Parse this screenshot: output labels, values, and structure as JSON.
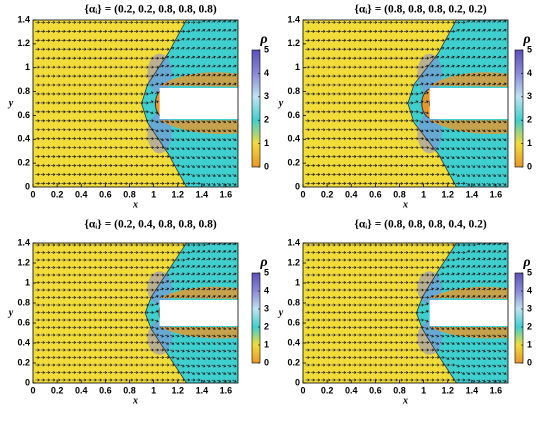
{
  "chart_data": [
    {
      "type": "field",
      "title": "{αᵢ} = (0.2, 0.2, 0.8, 0.8, 0.8)",
      "xlabel": "x",
      "ylabel": "y",
      "xlim": [
        0,
        1.7
      ],
      "ylim": [
        0,
        1.4
      ],
      "xticks": [
        0,
        0.2,
        0.4,
        0.6,
        0.8,
        1,
        1.2,
        1.4,
        1.6
      ],
      "yticks": [
        0,
        0.2,
        0.4,
        0.6,
        0.8,
        1,
        1.2,
        1.4
      ],
      "colorbar": {
        "label": "ρ",
        "lim": [
          0,
          5
        ],
        "ticks": [
          0,
          1,
          2,
          3,
          4,
          5
        ],
        "colors": [
          "#e8962a",
          "#f2dc3a",
          "#3fcfcf",
          "#bfe2f0",
          "#8a8ad8",
          "#5a52b8"
        ]
      }
    },
    {
      "type": "field",
      "title": "{αᵢ} = (0.8, 0.8, 0.8, 0.2, 0.2)",
      "xlabel": "x",
      "ylabel": "y",
      "xlim": [
        0,
        1.7
      ],
      "ylim": [
        0,
        1.4
      ],
      "xticks": [
        0,
        0.2,
        0.4,
        0.6,
        0.8,
        1,
        1.2,
        1.4,
        1.6
      ],
      "yticks": [
        0,
        0.2,
        0.4,
        0.6,
        0.8,
        1,
        1.2,
        1.4
      ],
      "colorbar": {
        "label": "ρ",
        "lim": [
          0,
          5
        ],
        "ticks": [
          0,
          1,
          2,
          3,
          4,
          5
        ],
        "colors": [
          "#e8962a",
          "#f2dc3a",
          "#3fcfcf",
          "#bfe2f0",
          "#8a8ad8",
          "#5a52b8"
        ]
      }
    },
    {
      "type": "field",
      "title": "{αᵢ} = (0.2, 0.4, 0.8, 0.8, 0.8)",
      "xlabel": "x",
      "ylabel": "y",
      "xlim": [
        0,
        1.7
      ],
      "ylim": [
        0,
        1.4
      ],
      "xticks": [
        0,
        0.2,
        0.4,
        0.6,
        0.8,
        1,
        1.2,
        1.4,
        1.6
      ],
      "yticks": [
        0,
        0.2,
        0.4,
        0.6,
        0.8,
        1,
        1.2,
        1.4
      ],
      "colorbar": {
        "label": "ρ",
        "lim": [
          0,
          5
        ],
        "ticks": [
          0,
          1,
          2,
          3,
          4,
          5
        ],
        "colors": [
          "#e8962a",
          "#f2dc3a",
          "#3fcfcf",
          "#bfe2f0",
          "#8a8ad8",
          "#5a52b8"
        ]
      }
    },
    {
      "type": "field",
      "title": "{αᵢ} = (0.8, 0.8, 0.8, 0.4, 0.2)",
      "xlabel": "x",
      "ylabel": "y",
      "xlim": [
        0,
        1.7
      ],
      "ylim": [
        0,
        1.4
      ],
      "xticks": [
        0,
        0.2,
        0.4,
        0.6,
        0.8,
        1,
        1.2,
        1.4,
        1.6
      ],
      "yticks": [
        0,
        0.2,
        0.4,
        0.6,
        0.8,
        1,
        1.2,
        1.4
      ],
      "colorbar": {
        "label": "ρ",
        "lim": [
          0,
          5
        ],
        "ticks": [
          0,
          1,
          2,
          3,
          4,
          5
        ],
        "colors": [
          "#e8962a",
          "#f2dc3a",
          "#3fcfcf",
          "#bfe2f0",
          "#8a8ad8",
          "#5a52b8"
        ]
      }
    }
  ]
}
